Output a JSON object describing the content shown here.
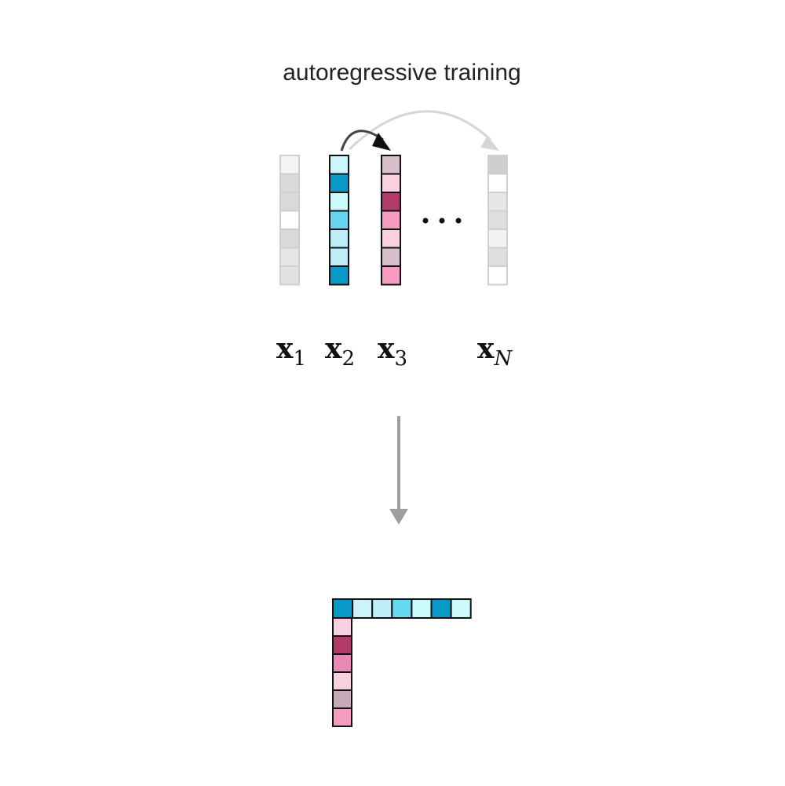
{
  "title": "autoregressive training",
  "labels": [
    {
      "base": "x",
      "sub": "1"
    },
    {
      "base": "x",
      "sub": "2"
    },
    {
      "base": "x",
      "sub": "3"
    },
    {
      "base": "x",
      "sub": "N"
    }
  ]
}
